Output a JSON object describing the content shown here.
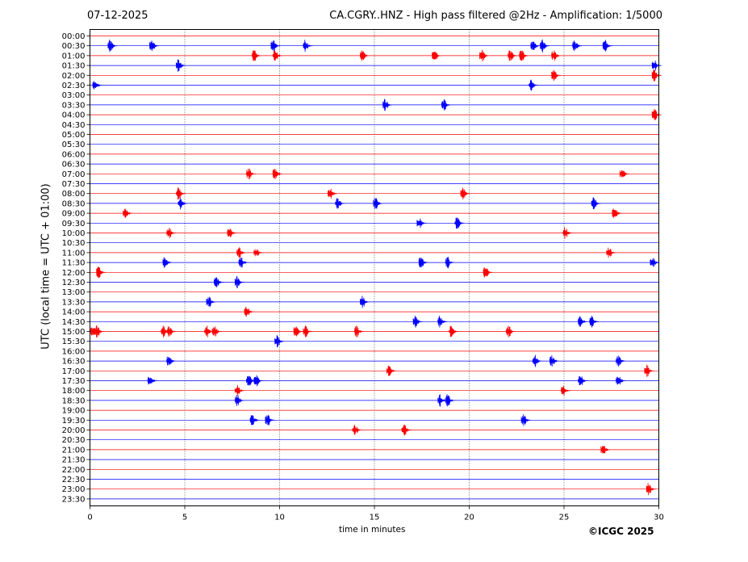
{
  "header": {
    "date": "07-12-2025",
    "title": "CA.CGRY..HNZ - High pass filtered @2Hz - Amplification: 1/5000"
  },
  "footer": {
    "credit": "©ICGC 2025"
  },
  "chart_data": {
    "type": "seismogram",
    "title": "CA.CGRY..HNZ - High pass filtered @2Hz - Amplification: 1/5000",
    "xlabel": "time in minutes",
    "ylabel": "UTC (local time = UTC + 01:00)",
    "xlim": [
      0,
      30
    ],
    "x_ticks": [
      0,
      5,
      10,
      15,
      20,
      25,
      30
    ],
    "grid": "vertical dotted at 5-minute intervals",
    "trace_colors": [
      "#ff0000",
      "#0000ff"
    ],
    "rows": [
      "00:00",
      "00:30",
      "01:00",
      "01:30",
      "02:00",
      "02:30",
      "03:00",
      "03:30",
      "04:00",
      "04:30",
      "05:00",
      "05:30",
      "06:00",
      "06:30",
      "07:00",
      "07:30",
      "08:00",
      "08:30",
      "09:00",
      "09:30",
      "10:00",
      "10:30",
      "11:00",
      "11:30",
      "12:00",
      "12:30",
      "13:00",
      "13:30",
      "14:00",
      "14:30",
      "15:00",
      "15:30",
      "16:00",
      "16:30",
      "17:00",
      "17:30",
      "18:00",
      "18:30",
      "19:00",
      "19:30",
      "20:00",
      "20:30",
      "21:00",
      "21:30",
      "22:00",
      "22:30",
      "23:00",
      "23:30"
    ],
    "events": [
      {
        "row": 1,
        "t": [
          1.2,
          3.4,
          9.8,
          11.5,
          23.5,
          24.0,
          25.7,
          27.3
        ]
      },
      {
        "row": 2,
        "t": [
          8.8,
          9.9,
          14.5,
          18.3,
          20.8,
          22.3,
          22.9,
          24.6
        ]
      },
      {
        "row": 3,
        "t": [
          4.8,
          29.9
        ]
      },
      {
        "row": 4,
        "t": [
          24.6,
          29.9
        ]
      },
      {
        "row": 5,
        "t": [
          0.4,
          23.4
        ]
      },
      {
        "row": 7,
        "t": [
          15.7,
          18.8
        ]
      },
      {
        "row": 8,
        "t": [
          29.9
        ]
      },
      {
        "row": 14,
        "t": [
          8.5,
          9.9,
          28.2
        ]
      },
      {
        "row": 16,
        "t": [
          4.8,
          12.8,
          19.8
        ]
      },
      {
        "row": 17,
        "t": [
          4.9,
          13.2,
          15.2,
          26.7
        ]
      },
      {
        "row": 18,
        "t": [
          2.0,
          27.8
        ]
      },
      {
        "row": 19,
        "t": [
          17.5,
          19.5
        ]
      },
      {
        "row": 20,
        "t": [
          4.3,
          7.5,
          25.2
        ]
      },
      {
        "row": 22,
        "t": [
          8.0,
          8.9,
          27.5
        ]
      },
      {
        "row": 23,
        "t": [
          4.1,
          8.1,
          17.6,
          19.0,
          29.8
        ]
      },
      {
        "row": 24,
        "t": [
          0.6,
          21.0
        ]
      },
      {
        "row": 25,
        "t": [
          7.9,
          6.8
        ]
      },
      {
        "row": 27,
        "t": [
          6.4,
          14.5
        ]
      },
      {
        "row": 28,
        "t": [
          8.4
        ]
      },
      {
        "row": 29,
        "t": [
          17.3,
          18.6,
          26.0,
          26.6
        ]
      },
      {
        "row": 30,
        "t": [
          0.3,
          0.5,
          4.0,
          4.3,
          6.3,
          6.7,
          11.0,
          11.5,
          14.2,
          19.2,
          22.2
        ]
      },
      {
        "row": 31,
        "t": [
          10.0
        ]
      },
      {
        "row": 33,
        "t": [
          4.3,
          23.6,
          24.5,
          28.0
        ]
      },
      {
        "row": 34,
        "t": [
          15.9,
          29.5
        ]
      },
      {
        "row": 35,
        "t": [
          3.3,
          8.5,
          8.9,
          26.0,
          28.0
        ]
      },
      {
        "row": 36,
        "t": [
          7.9,
          25.1
        ]
      },
      {
        "row": 37,
        "t": [
          7.9,
          18.6,
          19.0
        ]
      },
      {
        "row": 39,
        "t": [
          8.7,
          9.5,
          23.0
        ]
      },
      {
        "row": 40,
        "t": [
          14.1,
          16.7
        ]
      },
      {
        "row": 42,
        "t": [
          27.2
        ]
      },
      {
        "row": 46,
        "t": [
          29.6
        ]
      }
    ]
  }
}
